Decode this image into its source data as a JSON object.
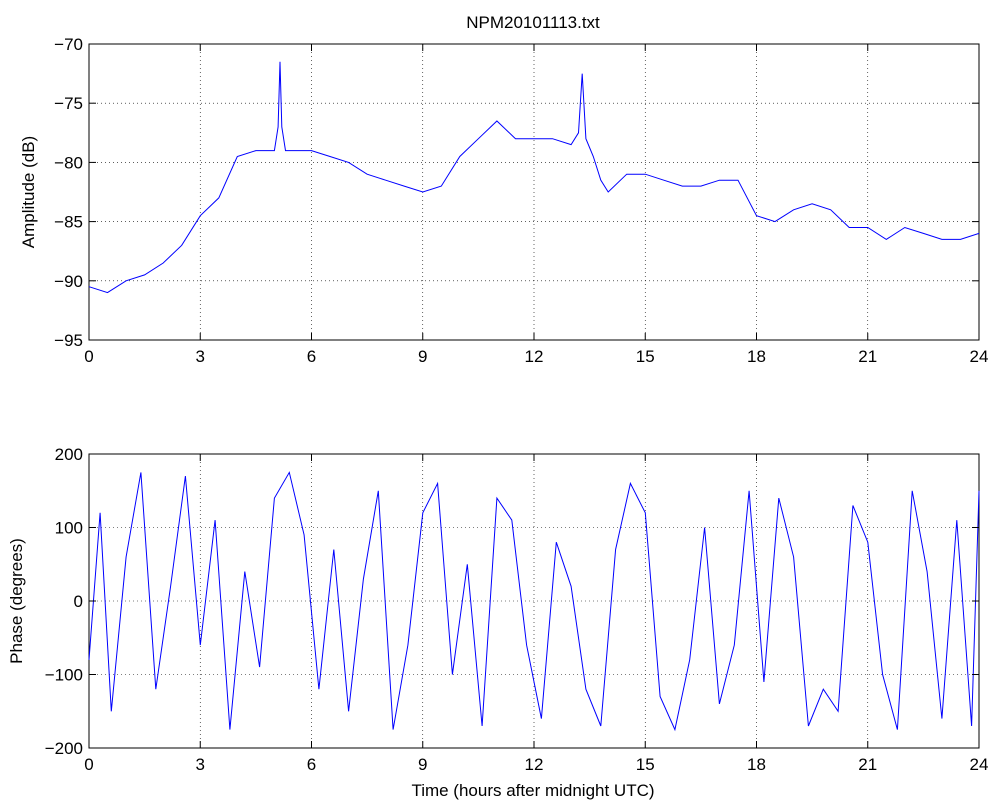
{
  "figure": {
    "title": "NPM20101113.txt"
  },
  "chart_data": [
    {
      "type": "line",
      "title": "NPM20101113.txt",
      "xlabel": "",
      "ylabel": "Amplitude (dB)",
      "xlim": [
        0,
        24
      ],
      "ylim": [
        -95,
        -70
      ],
      "xticks": [
        "0",
        "3",
        "6",
        "9",
        "12",
        "15",
        "18",
        "21",
        "24"
      ],
      "yticks": [
        "-95",
        "-90",
        "-85",
        "-80",
        "-75",
        "-70"
      ],
      "grid": true,
      "color": "#0000ff",
      "series": [
        {
          "x": [
            0.0,
            0.5,
            1.0,
            1.5,
            2.0,
            2.5,
            3.0,
            3.5,
            4.0,
            4.5,
            5.0,
            5.1,
            5.15,
            5.2,
            5.3,
            5.5,
            6.0,
            6.5,
            7.0,
            7.5,
            8.0,
            8.5,
            9.0,
            9.5,
            10.0,
            10.5,
            11.0,
            11.5,
            12.0,
            12.5,
            13.0,
            13.2,
            13.3,
            13.4,
            13.6,
            13.8,
            14.0,
            14.5,
            15.0,
            15.5,
            16.0,
            16.5,
            17.0,
            17.5,
            18.0,
            18.5,
            19.0,
            19.5,
            20.0,
            20.5,
            21.0,
            21.5,
            22.0,
            22.5,
            23.0,
            23.5,
            24.0
          ],
          "y": [
            -90.5,
            -91.0,
            -90.0,
            -89.5,
            -88.5,
            -87.0,
            -84.5,
            -83.0,
            -79.5,
            -79.0,
            -79.0,
            -77.0,
            -71.5,
            -77.0,
            -79.0,
            -79.0,
            -79.0,
            -79.5,
            -80.0,
            -81.0,
            -81.5,
            -82.0,
            -82.5,
            -82.0,
            -79.5,
            -78.0,
            -76.5,
            -78.0,
            -78.0,
            -78.0,
            -78.5,
            -77.5,
            -72.5,
            -78.0,
            -79.5,
            -81.5,
            -82.5,
            -81.0,
            -81.0,
            -81.5,
            -82.0,
            -82.0,
            -81.5,
            -81.5,
            -84.5,
            -85.0,
            -84.0,
            -83.5,
            -84.0,
            -85.5,
            -85.5,
            -86.5,
            -85.5,
            -86.0,
            -86.5,
            -86.5,
            -86.0
          ]
        }
      ]
    },
    {
      "type": "line",
      "title": "",
      "xlabel": "Time (hours after midnight UTC)",
      "ylabel": "Phase (degrees)",
      "xlim": [
        0,
        24
      ],
      "ylim": [
        -200,
        200
      ],
      "xticks": [
        "0",
        "3",
        "6",
        "9",
        "12",
        "15",
        "18",
        "21",
        "24"
      ],
      "yticks": [
        "-200",
        "-100",
        "0",
        "100",
        "200"
      ],
      "grid": true,
      "color": "#0000ff",
      "series": [
        {
          "x": [
            0.0,
            0.3,
            0.6,
            1.0,
            1.4,
            1.8,
            2.2,
            2.6,
            3.0,
            3.4,
            3.8,
            4.2,
            4.6,
            5.0,
            5.4,
            5.8,
            6.2,
            6.6,
            7.0,
            7.4,
            7.8,
            8.2,
            8.6,
            9.0,
            9.4,
            9.8,
            10.2,
            10.6,
            11.0,
            11.4,
            11.8,
            12.2,
            12.6,
            13.0,
            13.4,
            13.8,
            14.2,
            14.6,
            15.0,
            15.4,
            15.8,
            16.2,
            16.6,
            17.0,
            17.4,
            17.8,
            18.2,
            18.6,
            19.0,
            19.4,
            19.8,
            20.2,
            20.6,
            21.0,
            21.4,
            21.8,
            22.2,
            22.6,
            23.0,
            23.4,
            23.8,
            24.0
          ],
          "y": [
            -80,
            120,
            -150,
            60,
            175,
            -120,
            20,
            170,
            -60,
            110,
            -175,
            40,
            -90,
            140,
            175,
            90,
            -120,
            70,
            -150,
            30,
            150,
            -175,
            -60,
            120,
            160,
            -100,
            50,
            -170,
            140,
            110,
            -60,
            -160,
            80,
            20,
            -120,
            -170,
            70,
            160,
            120,
            -130,
            -175,
            -80,
            100,
            -140,
            -60,
            150,
            -110,
            140,
            60,
            -170,
            -120,
            -150,
            130,
            80,
            -100,
            -175,
            150,
            40,
            -160,
            110,
            -170,
            150
          ]
        }
      ]
    }
  ]
}
